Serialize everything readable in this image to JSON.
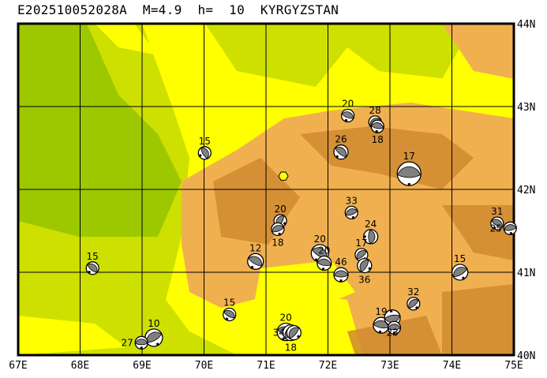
{
  "title": "E202510052028A  M=4.9  h=  10  KYRGYZSTAN",
  "map": {
    "lon_range": [
      67,
      75
    ],
    "lat_range": [
      40,
      44
    ],
    "lon_labels": [
      "67E",
      "68E",
      "69E",
      "70E",
      "71E",
      "72E",
      "73E",
      "74E",
      "75E"
    ],
    "lat_labels": [
      "44N",
      "43N",
      "42N",
      "41N",
      "40N"
    ],
    "colors": {
      "lowland_green": "#9dc800",
      "plain": "#cde000",
      "foothill": "#ffff00",
      "mountain": "#f0b050",
      "high_mountain": "#d08a30",
      "ball_fill": "#808080",
      "epicenter": "#ffff00"
    },
    "epicenter": {
      "lon": 71.28,
      "lat": 42.16
    },
    "events": [
      {
        "lon": 72.32,
        "lat": 42.89,
        "depth": "20",
        "size": 8,
        "rot": 20
      },
      {
        "lon": 72.76,
        "lat": 42.81,
        "depth": "28",
        "size": 8,
        "rot": -30
      },
      {
        "lon": 72.8,
        "lat": 42.76,
        "depth": "18",
        "size": 8,
        "rot": 10
      },
      {
        "lon": 72.21,
        "lat": 42.45,
        "depth": "26",
        "size": 9,
        "rot": 40
      },
      {
        "lon": 73.31,
        "lat": 42.19,
        "depth": "17",
        "size": 15,
        "rot": 0
      },
      {
        "lon": 70.01,
        "lat": 42.44,
        "depth": "15",
        "size": 8,
        "rot": 60
      },
      {
        "lon": 72.38,
        "lat": 41.72,
        "depth": "33",
        "size": 8,
        "rot": -20
      },
      {
        "lon": 71.23,
        "lat": 41.62,
        "depth": "20",
        "size": 8,
        "rot": -60
      },
      {
        "lon": 71.19,
        "lat": 41.52,
        "depth": "18",
        "size": 8,
        "rot": -20
      },
      {
        "lon": 74.73,
        "lat": 41.59,
        "depth": "31",
        "size": 8,
        "rot": 30
      },
      {
        "lon": 74.94,
        "lat": 41.53,
        "depth": "25",
        "size": 8,
        "rot": -10
      },
      {
        "lon": 72.69,
        "lat": 41.43,
        "depth": "24",
        "size": 9,
        "rot": 90
      },
      {
        "lon": 71.87,
        "lat": 41.23,
        "depth": "20",
        "size": 11,
        "rot": 30
      },
      {
        "lon": 71.94,
        "lat": 41.11,
        "depth": "20",
        "size": 9,
        "rot": 10
      },
      {
        "lon": 72.54,
        "lat": 41.21,
        "depth": "17",
        "size": 8,
        "rot": -40
      },
      {
        "lon": 72.59,
        "lat": 41.08,
        "depth": "36",
        "size": 9,
        "rot": -60
      },
      {
        "lon": 72.21,
        "lat": 40.97,
        "depth": "46",
        "size": 9,
        "rot": 0
      },
      {
        "lon": 70.83,
        "lat": 41.13,
        "depth": "12",
        "size": 10,
        "rot": 30
      },
      {
        "lon": 68.2,
        "lat": 41.05,
        "depth": "15",
        "size": 8,
        "rot": 40
      },
      {
        "lon": 74.13,
        "lat": 41.0,
        "depth": "15",
        "size": 10,
        "rot": -30
      },
      {
        "lon": 73.38,
        "lat": 40.62,
        "depth": "32",
        "size": 8,
        "rot": -40
      },
      {
        "lon": 70.41,
        "lat": 40.49,
        "depth": "15",
        "size": 8,
        "rot": 30
      },
      {
        "lon": 71.32,
        "lat": 40.28,
        "depth": "20",
        "size": 11,
        "rot": 20
      },
      {
        "lon": 71.4,
        "lat": 40.27,
        "depth": "18",
        "size": 10,
        "rot": -40
      },
      {
        "lon": 71.45,
        "lat": 40.27,
        "depth": "34",
        "size": 9,
        "rot": -50
      },
      {
        "lon": 72.86,
        "lat": 40.36,
        "depth": "19",
        "size": 10,
        "rot": 10
      },
      {
        "lon": 73.04,
        "lat": 40.45,
        "depth": "23",
        "size": 10,
        "rot": 170
      },
      {
        "lon": 73.07,
        "lat": 40.33,
        "depth": "",
        "size": 8,
        "rot": 0
      },
      {
        "lon": 69.19,
        "lat": 40.21,
        "depth": "10",
        "size": 11,
        "rot": -30
      },
      {
        "lon": 68.99,
        "lat": 40.15,
        "depth": "27",
        "size": 8,
        "rot": 0
      }
    ]
  }
}
